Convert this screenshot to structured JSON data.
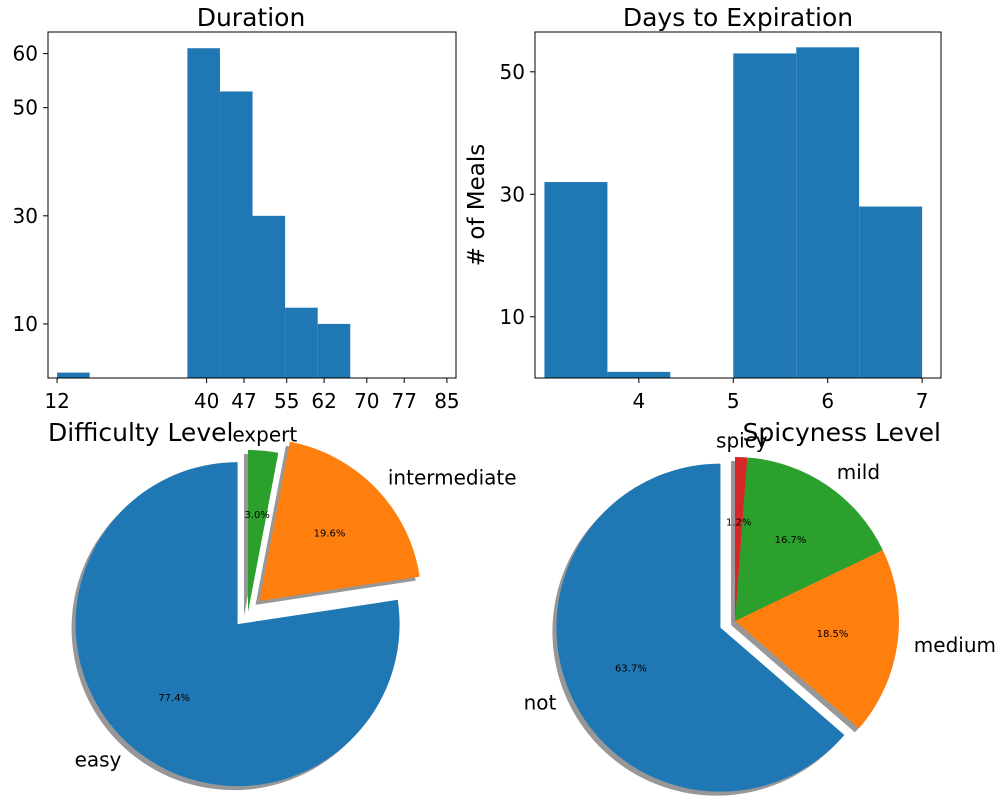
{
  "colors": {
    "blue": "#1f77b4",
    "orange": "#ff7f0e",
    "green": "#2ca02c",
    "red": "#d62728",
    "shadow": "#8c8c8c"
  },
  "chart_data": [
    {
      "type": "bar",
      "subtype": "histogram",
      "title": "Duration",
      "xlabel": "",
      "ylabel": "",
      "xlim": [
        10.3,
        86.7
      ],
      "ylim": [
        0,
        64
      ],
      "xticks": [
        12,
        40,
        47,
        55,
        62,
        70,
        77,
        85
      ],
      "yticks": [
        10,
        30,
        50,
        60
      ],
      "bins": [
        {
          "x0": 12,
          "x1": 18.1,
          "value": 1
        },
        {
          "x0": 18.1,
          "x1": 24.2,
          "value": 0
        },
        {
          "x0": 24.2,
          "x1": 30.3,
          "value": 0
        },
        {
          "x0": 30.3,
          "x1": 36.4,
          "value": 0
        },
        {
          "x0": 36.4,
          "x1": 42.5,
          "value": 61
        },
        {
          "x0": 42.5,
          "x1": 48.6,
          "value": 53
        },
        {
          "x0": 48.6,
          "x1": 54.7,
          "value": 30
        },
        {
          "x0": 54.7,
          "x1": 60.8,
          "value": 13
        },
        {
          "x0": 60.8,
          "x1": 66.9,
          "value": 10
        }
      ],
      "color": "blue",
      "grid": false
    },
    {
      "type": "bar",
      "subtype": "histogram",
      "title": "Days to Expiration",
      "xlabel": "",
      "ylabel": "# of Meals",
      "xlim": [
        2.9,
        7.2
      ],
      "ylim": [
        0,
        56.5
      ],
      "xticks": [
        4,
        5,
        6,
        7
      ],
      "yticks": [
        10,
        30,
        50
      ],
      "bins": [
        {
          "x0": 3.0,
          "x1": 3.667,
          "value": 32
        },
        {
          "x0": 3.667,
          "x1": 4.333,
          "value": 1
        },
        {
          "x0": 4.333,
          "x1": 5.0,
          "value": 0
        },
        {
          "x0": 5.0,
          "x1": 5.667,
          "value": 53
        },
        {
          "x0": 5.667,
          "x1": 6.333,
          "value": 54
        },
        {
          "x0": 6.333,
          "x1": 7.0,
          "value": 28
        }
      ],
      "color": "blue",
      "grid": false
    },
    {
      "type": "pie",
      "title": "Difficulty Level",
      "title_align": "left",
      "slices": [
        {
          "label": "easy",
          "pct_label": "77.4%",
          "value": 77.4,
          "color": "blue",
          "explode": true
        },
        {
          "label": "intermediate",
          "pct_label": "19.6%",
          "value": 19.6,
          "color": "orange",
          "explode": true
        },
        {
          "label": "expert",
          "pct_label": "3.0%",
          "value": 3.0,
          "color": "green",
          "explode": false
        }
      ],
      "start_angle": 90,
      "shadow": true
    },
    {
      "type": "pie",
      "title": "Spicyness Level",
      "title_align": "right",
      "slices": [
        {
          "label": "not",
          "pct_label": "63.7%",
          "value": 63.7,
          "color": "blue",
          "explode": true
        },
        {
          "label": "medium",
          "pct_label": "18.5%",
          "value": 18.5,
          "color": "orange",
          "explode": false
        },
        {
          "label": "mild",
          "pct_label": "16.7%",
          "value": 16.7,
          "color": "green",
          "explode": false
        },
        {
          "label": "spicy",
          "pct_label": "1.2%",
          "value": 1.2,
          "color": "red",
          "explode": false
        }
      ],
      "start_angle": 90,
      "shadow": true
    }
  ]
}
